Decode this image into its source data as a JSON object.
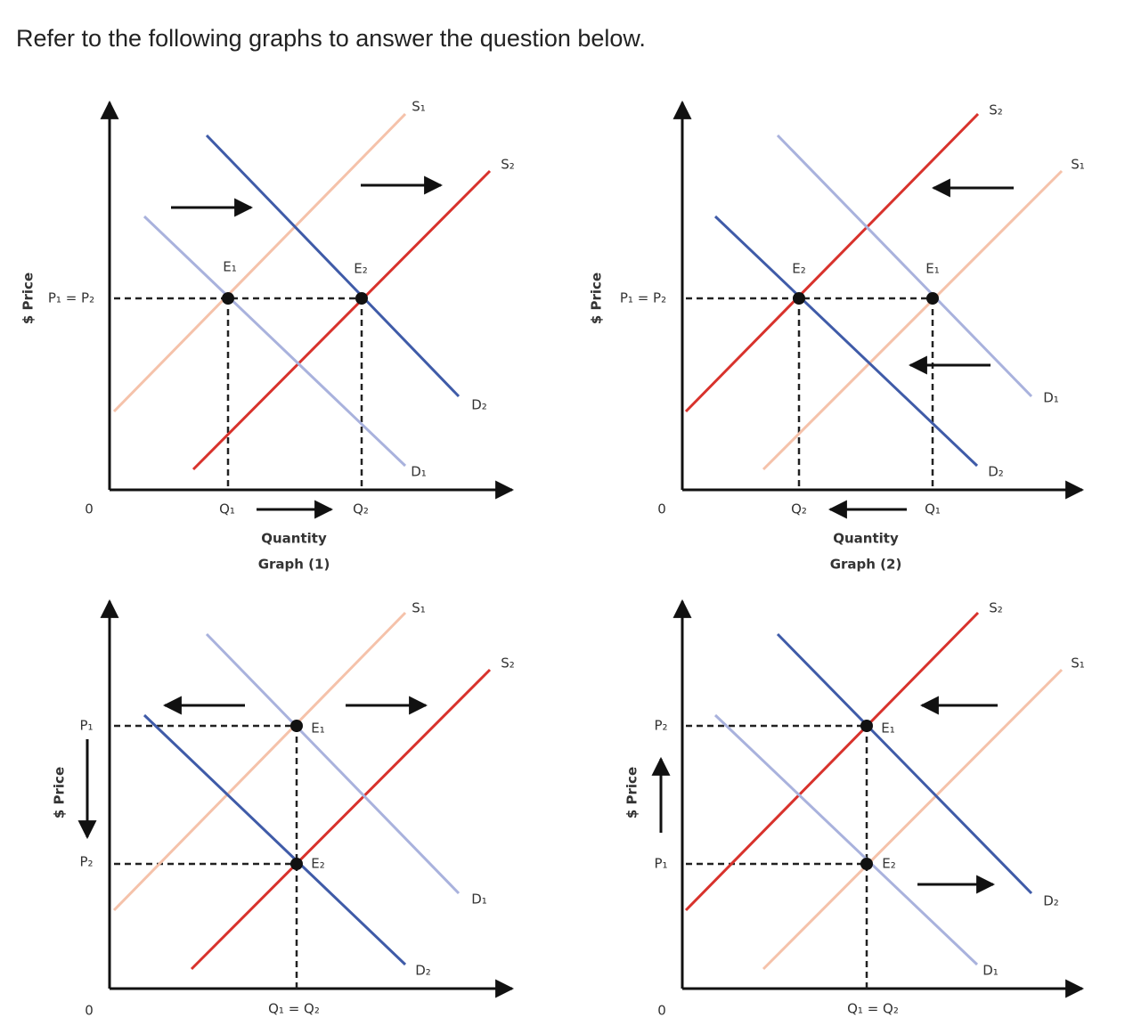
{
  "header": {
    "title": "Refer to the following graphs to answer the question below."
  },
  "graphs": [
    {
      "price_axis": "$ Price",
      "origin": "0",
      "prices": [
        "P₁ = P₂"
      ],
      "quantities": [
        "Q₁",
        "Q₂"
      ],
      "curves": [
        "S₁",
        "S₂",
        "D₁",
        "D₂"
      ],
      "points": [
        "E₁",
        "E₂"
      ],
      "axis_title": "Quantity",
      "caption": "Graph (1)"
    },
    {
      "price_axis": "$ Price",
      "origin": "0",
      "prices": [
        "P₁ = P₂"
      ],
      "quantities": [
        "Q₂",
        "Q₁"
      ],
      "curves": [
        "S₂",
        "S₁",
        "D₁",
        "D₂"
      ],
      "points": [
        "E₂",
        "E₁"
      ],
      "axis_title": "Quantity",
      "caption": "Graph (2)"
    },
    {
      "price_axis": "$ Price",
      "origin": "0",
      "prices": [
        "P₁",
        "P₂"
      ],
      "quantities": [
        "Q₁ = Q₂"
      ],
      "curves": [
        "S₁",
        "S₂",
        "D₁",
        "D₂"
      ],
      "points": [
        "E₁",
        "E₂"
      ]
    },
    {
      "price_axis": "$ Price",
      "origin": "0",
      "prices": [
        "P₂",
        "P₁"
      ],
      "quantities": [
        "Q₁ = Q₂"
      ],
      "curves": [
        "S₂",
        "S₁",
        "D₂",
        "D₁"
      ],
      "points": [
        "E₁",
        "E₂"
      ]
    }
  ]
}
